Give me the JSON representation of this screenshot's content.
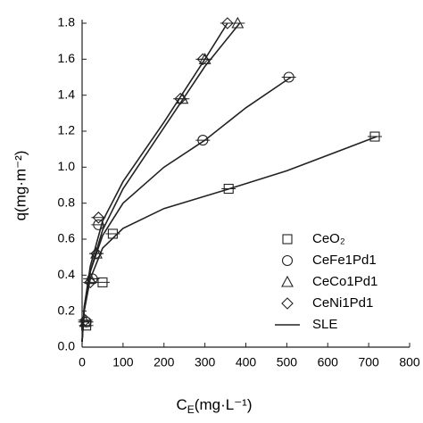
{
  "chart_data": {
    "type": "scatter",
    "xlabel": {
      "main": "C",
      "sub": "E",
      "rest": "(mg·L⁻¹)"
    },
    "ylabel": "q(mg·m⁻²)",
    "xlim": [
      0,
      800
    ],
    "ylim": [
      0,
      1.8
    ],
    "xticks": [
      0,
      100,
      200,
      300,
      400,
      500,
      600,
      700,
      800
    ],
    "yticks": [
      {
        "value": 0,
        "label": "0.0"
      },
      0.2,
      0.4,
      0.6,
      0.8,
      {
        "value": 1,
        "label": "1.0"
      },
      1.2,
      1.4,
      1.6,
      1.8
    ],
    "legend": "lower right",
    "color": "#222222",
    "series": [
      {
        "name": "CeO₂",
        "marker": "square",
        "x": [
          10,
          50,
          75,
          358,
          715
        ],
        "y": [
          0.12,
          0.36,
          0.63,
          0.88,
          1.17
        ]
      },
      {
        "name": "CeFe1Pd1",
        "marker": "circle",
        "x": [
          10,
          25,
          40,
          295,
          505
        ],
        "y": [
          0.14,
          0.38,
          0.68,
          1.15,
          1.5
        ]
      },
      {
        "name": "CeCo1Pd1",
        "marker": "triangle",
        "x": [
          8,
          20,
          35,
          245,
          300,
          380
        ],
        "y": [
          0.14,
          0.38,
          0.52,
          1.38,
          1.6,
          1.8
        ]
      },
      {
        "name": "CeNi1Pd1",
        "marker": "diamond",
        "x": [
          8,
          20,
          35,
          40,
          240,
          295,
          355
        ],
        "y": [
          0.15,
          0.36,
          0.52,
          0.72,
          1.38,
          1.6,
          1.8
        ]
      }
    ],
    "fit": {
      "name": "SLE",
      "curves": [
        {
          "x": [
            0,
            5,
            20,
            50,
            100,
            200,
            360,
            500,
            720
          ],
          "y": [
            0.03,
            0.2,
            0.38,
            0.55,
            0.66,
            0.77,
            0.88,
            0.98,
            1.17
          ]
        },
        {
          "x": [
            0,
            5,
            20,
            50,
            100,
            200,
            300,
            400,
            510
          ],
          "y": [
            0.03,
            0.22,
            0.42,
            0.62,
            0.8,
            1.0,
            1.15,
            1.33,
            1.5
          ]
        },
        {
          "x": [
            0,
            5,
            20,
            50,
            100,
            200,
            300,
            385
          ],
          "y": [
            0.03,
            0.2,
            0.42,
            0.65,
            0.88,
            1.22,
            1.56,
            1.8
          ]
        },
        {
          "x": [
            0,
            5,
            20,
            50,
            100,
            200,
            300,
            355
          ],
          "y": [
            0.03,
            0.22,
            0.45,
            0.7,
            0.92,
            1.25,
            1.6,
            1.8
          ]
        }
      ]
    }
  }
}
